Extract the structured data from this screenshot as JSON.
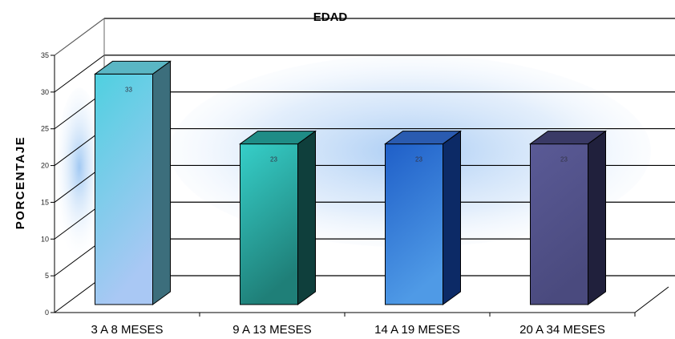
{
  "chart_data": {
    "type": "bar",
    "title": "EDAD",
    "xlabel": "",
    "ylabel": "PORCENTAJE",
    "categories": [
      "3 A 8 MESES",
      "9 A 13 MESES",
      "14 A 19 MESES",
      "20 A 34 MESES"
    ],
    "values": [
      33,
      23,
      23,
      23
    ],
    "value_labels": [
      "33",
      "23",
      "23",
      "23"
    ],
    "yticks": [
      "0",
      "5",
      "10",
      "15",
      "20",
      "25",
      "30",
      "35"
    ],
    "ylim": [
      0,
      35
    ],
    "grid": true,
    "legend": "none",
    "bar_colors": [
      {
        "front_top": "#4fd0e0",
        "front_bottom": "#a9c8f4",
        "side": "#3c6e7c",
        "top": "#5ab6c4"
      },
      {
        "front_top": "#36cfc9",
        "front_bottom": "#1f7f78",
        "side": "#0f3f3c",
        "top": "#1f8c86"
      },
      {
        "front_top": "#1f5fc8",
        "front_bottom": "#4f9ae6",
        "side": "#0c2a66",
        "top": "#2a5bb0"
      },
      {
        "front_top": "#5a5a96",
        "front_bottom": "#4a4a7e",
        "side": "#20203c",
        "top": "#3a3a66"
      }
    ]
  }
}
